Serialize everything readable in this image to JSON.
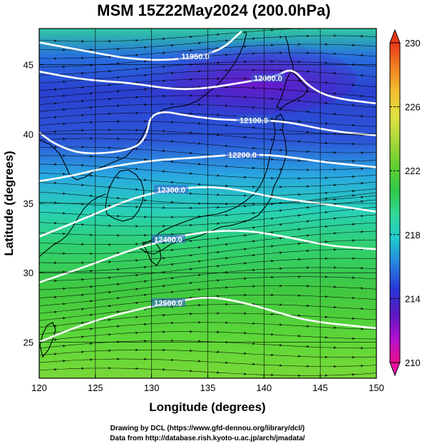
{
  "chart_data": {
    "type": "heatmap",
    "title": "MSM 15Z22May2024 (200.0hPa)",
    "xlabel": "Longitude (degrees)",
    "ylabel": "Latitude  (degrees)",
    "xlim": [
      120,
      150
    ],
    "ylim": [
      22.4,
      47.6
    ],
    "x_ticks": [
      120,
      125,
      130,
      135,
      140,
      145,
      150
    ],
    "y_ticks": [
      25,
      30,
      35,
      40,
      45
    ],
    "colorbar": {
      "min": 210,
      "max": 230,
      "ticks": [
        210,
        214,
        218,
        222,
        226,
        230
      ],
      "colors": [
        "#e8108c",
        "#b010d0",
        "#5818c0",
        "#2838d8",
        "#2880e0",
        "#20c8d0",
        "#30d898",
        "#30c848",
        "#60d030",
        "#a8d838",
        "#e0e040",
        "#f0c030",
        "#f08020",
        "#e83818"
      ]
    },
    "contours": [
      {
        "label": "11950.0",
        "points": [
          [
            120,
            46.6
          ],
          [
            124,
            46.0
          ],
          [
            128,
            45.4
          ],
          [
            132,
            45.3
          ],
          [
            136,
            45.9
          ],
          [
            138,
            47.4
          ]
        ]
      },
      {
        "label": "12000.0",
        "points": [
          [
            120,
            44.5
          ],
          [
            124,
            43.9
          ],
          [
            128,
            43.7
          ],
          [
            132,
            43.2
          ],
          [
            135,
            43.3
          ],
          [
            138,
            43.7
          ],
          [
            141,
            44.1
          ],
          [
            142.5,
            44.8
          ],
          [
            144,
            43.4
          ],
          [
            146,
            42.6
          ],
          [
            150,
            42.2
          ]
        ]
      },
      {
        "label": "12100.0",
        "points": [
          [
            120,
            40.1
          ],
          [
            121.5,
            39.2
          ],
          [
            124,
            38.5
          ],
          [
            128,
            38.8
          ],
          [
            129.5,
            39.6
          ],
          [
            130,
            41.8
          ],
          [
            134,
            41.2
          ],
          [
            137,
            41.0
          ],
          [
            139,
            41.0
          ],
          [
            142,
            40.9
          ],
          [
            146,
            40.2
          ],
          [
            150,
            39.9
          ]
        ]
      },
      {
        "label": "12200.0",
        "points": [
          [
            120,
            36.6
          ],
          [
            123,
            37.0
          ],
          [
            126,
            37.6
          ],
          [
            130,
            38.1
          ],
          [
            134,
            38.3
          ],
          [
            137,
            38.5
          ],
          [
            141,
            38.5
          ],
          [
            145,
            38.0
          ],
          [
            150,
            37.6
          ]
        ]
      },
      {
        "label": "12300.0",
        "points": [
          [
            120,
            32.6
          ],
          [
            124,
            33.9
          ],
          [
            128,
            35.3
          ],
          [
            131,
            35.9
          ],
          [
            134,
            36.2
          ],
          [
            137,
            36.1
          ],
          [
            141,
            35.4
          ],
          [
            145,
            35.0
          ],
          [
            150,
            34.4
          ]
        ]
      },
      {
        "label": "12400.0",
        "points": [
          [
            120,
            29.3
          ],
          [
            124,
            30.4
          ],
          [
            128,
            31.6
          ],
          [
            131,
            32.3
          ],
          [
            134,
            32.9
          ],
          [
            138,
            33.1
          ],
          [
            142,
            32.6
          ],
          [
            146,
            31.9
          ],
          [
            150,
            31.7
          ]
        ]
      },
      {
        "label": "12500.0",
        "points": [
          [
            120,
            25.0
          ],
          [
            123,
            26.0
          ],
          [
            126,
            26.8
          ],
          [
            129,
            27.4
          ],
          [
            132,
            27.9
          ],
          [
            135,
            28.3
          ],
          [
            138,
            27.9
          ],
          [
            141,
            27.2
          ],
          [
            144,
            26.5
          ],
          [
            150,
            26.0
          ]
        ]
      }
    ],
    "grid": true,
    "legend": "right"
  },
  "credits": {
    "line1": "Drawing by DCL (https://www.gfd-dennou.org/library/dcl/)",
    "line2": "Data from http://database.rish.kyoto-u.ac.jp/arch/jmadata/"
  }
}
